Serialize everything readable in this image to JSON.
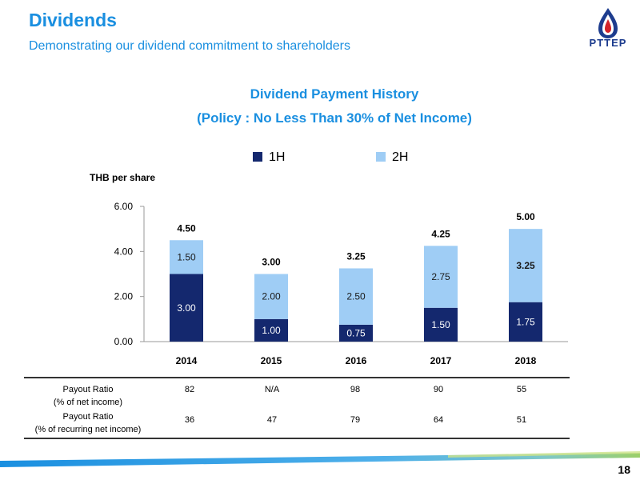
{
  "header": {
    "title": "Dividends",
    "subtitle": "Demonstrating our dividend commitment to shareholders"
  },
  "logo": {
    "text": "PTTEP",
    "icon": "pttep-flame-drop-logo"
  },
  "page_number": "18",
  "colors": {
    "accent": "#1a8fe0",
    "h1": "#14286e",
    "h2": "#9fcdf5",
    "logo_blue": "#1d3c8e",
    "logo_red": "#d2232a"
  },
  "chart_data": {
    "type": "bar",
    "stacked": true,
    "title": "Dividend Payment History",
    "subtitle": "(Policy : No Less Than 30% of Net Income)",
    "ylabel": "THB per share",
    "categories": [
      "2014",
      "2015",
      "2016",
      "2017",
      "2018"
    ],
    "series": [
      {
        "name": "1H",
        "values": [
          3.0,
          1.0,
          0.75,
          1.5,
          1.75
        ],
        "labels": [
          "3.00",
          "1.00",
          "0.75",
          "1.50",
          "1.75"
        ]
      },
      {
        "name": "2H",
        "values": [
          1.5,
          2.0,
          2.5,
          2.75,
          3.25
        ],
        "labels": [
          "1.50",
          "2.00",
          "2.50",
          "2.75",
          "3.25"
        ]
      }
    ],
    "totals": [
      "4.50",
      "3.00",
      "3.25",
      "4.25",
      "5.00"
    ],
    "ylim": [
      0,
      6
    ],
    "yticks": [
      "0.00",
      "2.00",
      "4.00",
      "6.00"
    ],
    "legend_position": "top"
  },
  "table": {
    "rows": [
      {
        "label": [
          "Payout Ratio",
          "(% of net income)"
        ],
        "values": [
          "82",
          "N/A",
          "98",
          "90",
          "55"
        ]
      },
      {
        "label": [
          "Payout Ratio",
          "(% of recurring net income)"
        ],
        "values": [
          "36",
          "47",
          "79",
          "64",
          "51"
        ]
      }
    ]
  }
}
